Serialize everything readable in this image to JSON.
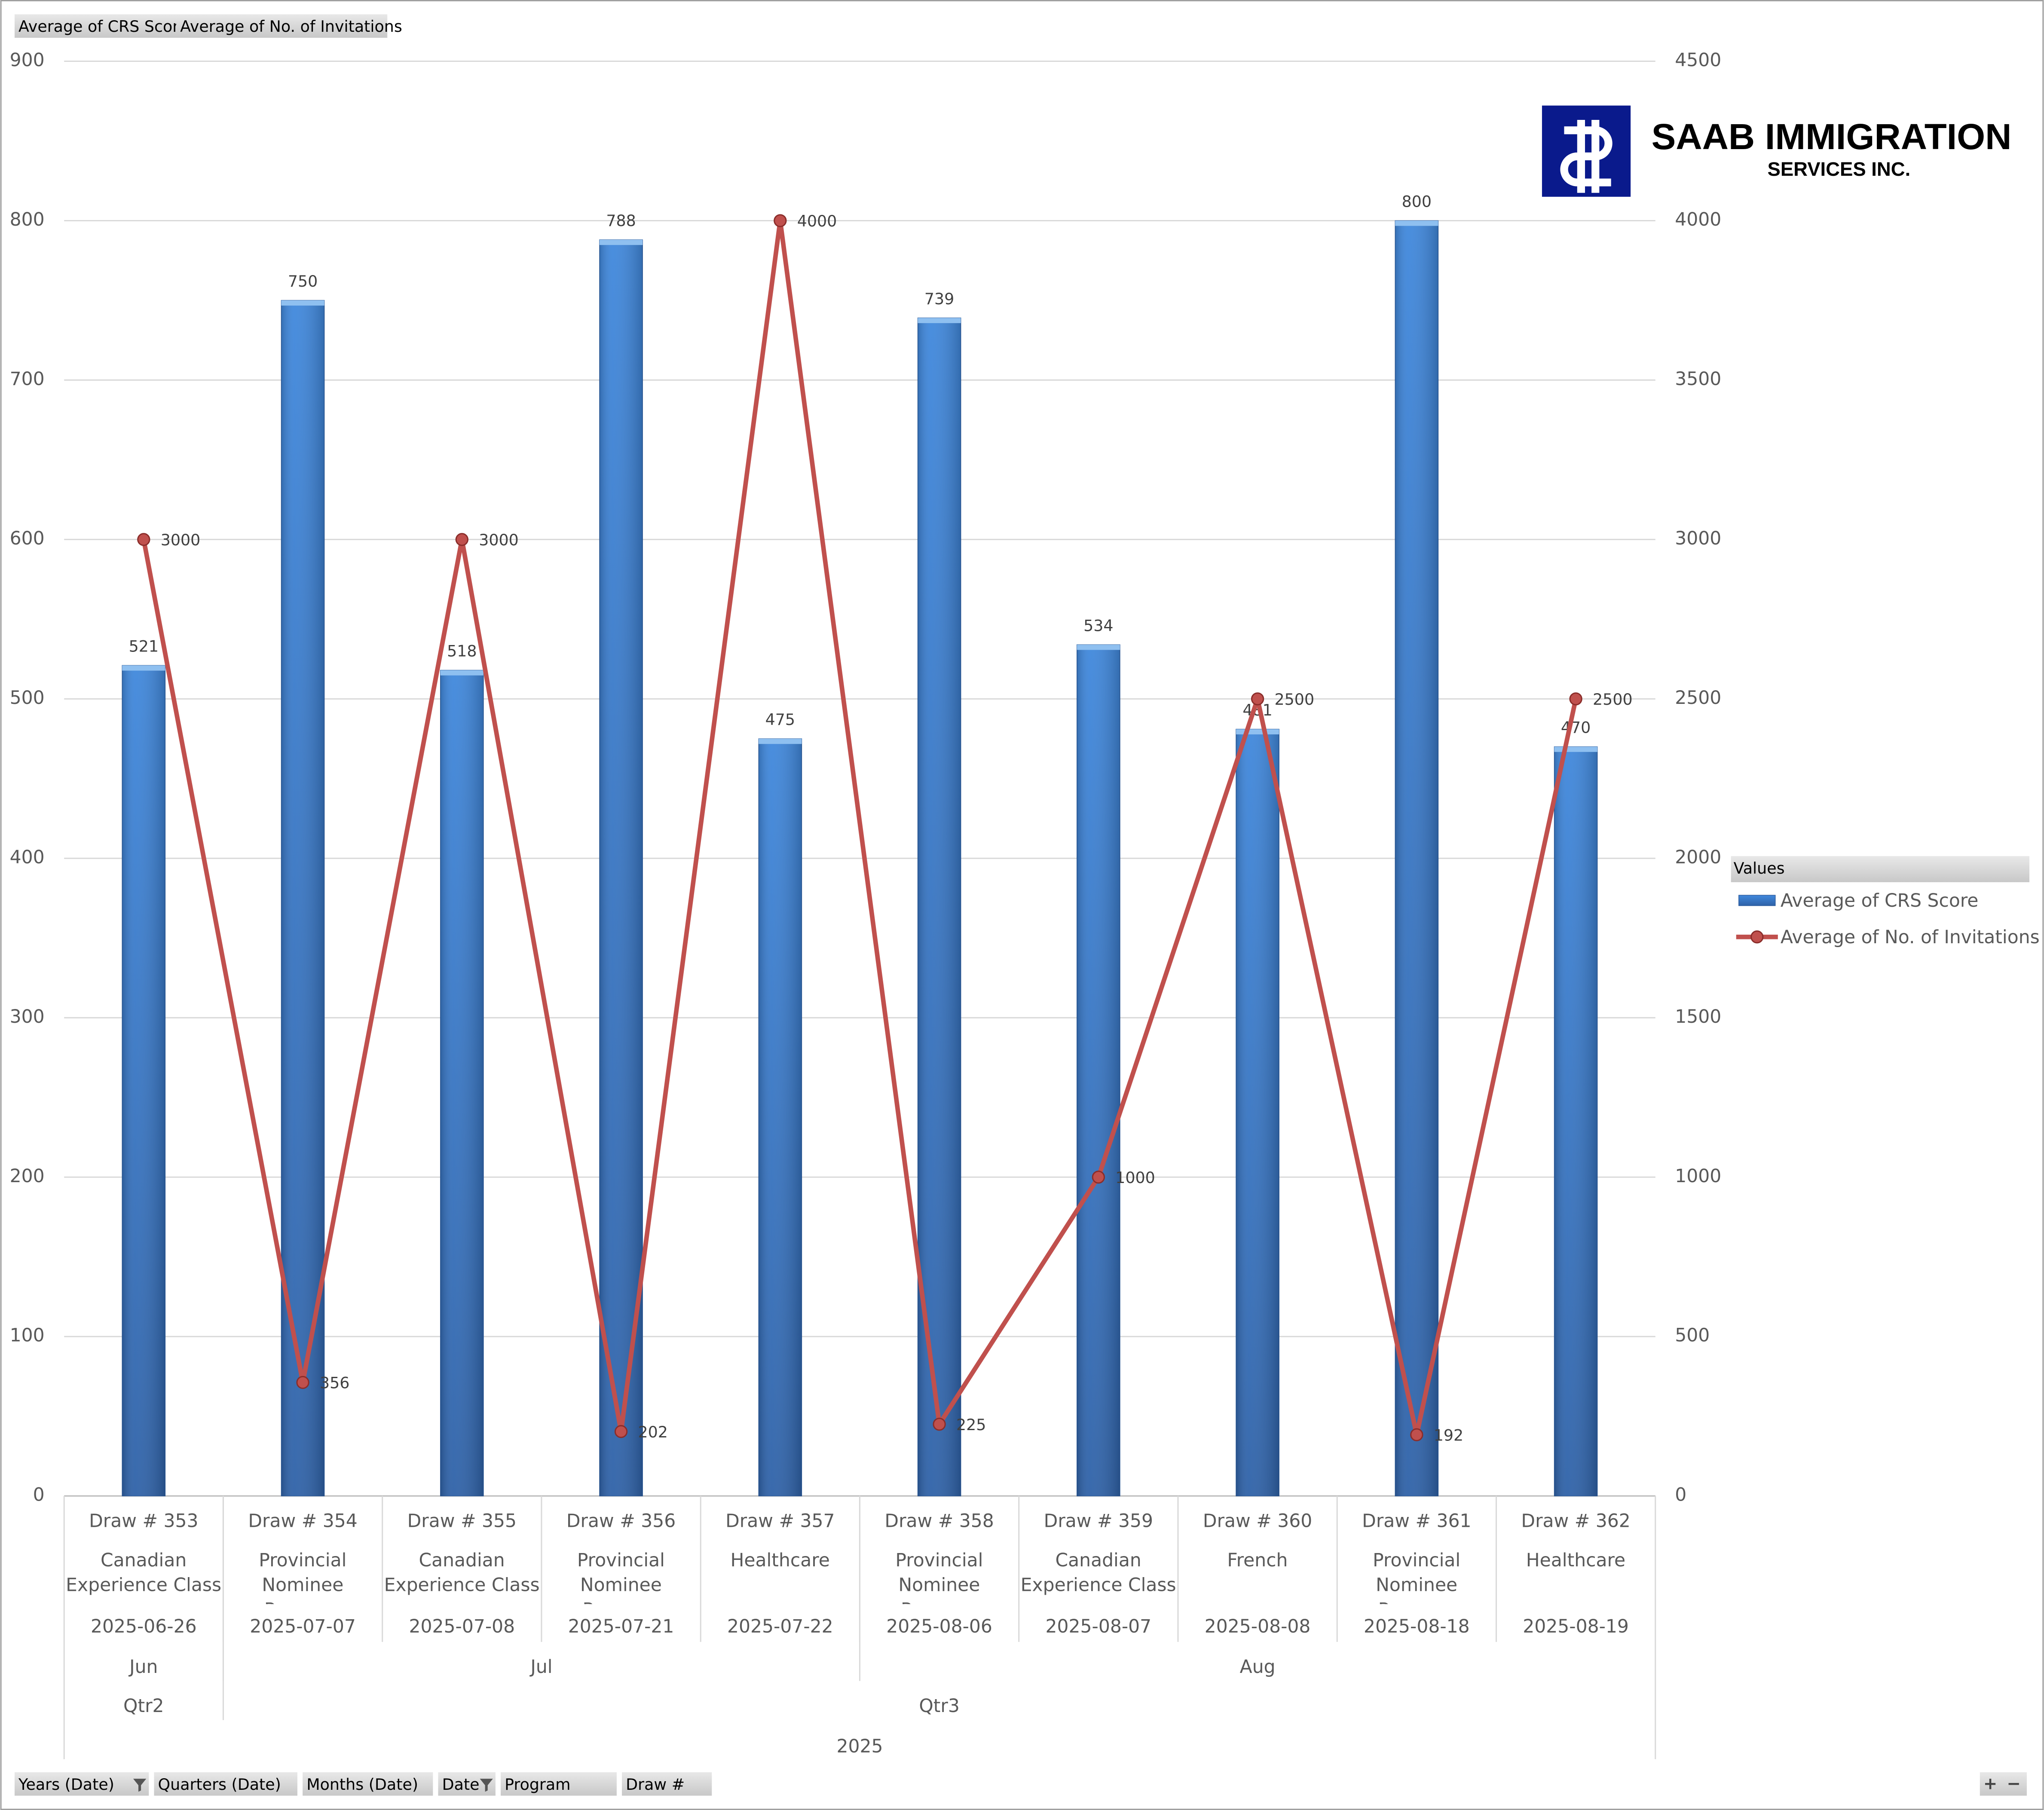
{
  "chart_data": {
    "type": "combo",
    "categories": [
      "Draw # 353",
      "Draw # 354",
      "Draw # 355",
      "Draw # 356",
      "Draw # 357",
      "Draw # 358",
      "Draw # 359",
      "Draw # 360",
      "Draw # 361",
      "Draw # 362"
    ],
    "programs": [
      "Canadian Experience Class",
      "Provincial Nominee Program",
      "Canadian Experience Class",
      "Provincial Nominee Program",
      "Healthcare",
      "Provincial Nominee Program",
      "Canadian Experience Class",
      "French",
      "Provincial Nominee Program",
      "Healthcare"
    ],
    "dates": [
      "2025-06-26",
      "2025-07-07",
      "2025-07-08",
      "2025-07-21",
      "2025-07-22",
      "2025-08-06",
      "2025-08-07",
      "2025-08-08",
      "2025-08-18",
      "2025-08-19"
    ],
    "months": [
      {
        "label": "Jun",
        "count": 1
      },
      {
        "label": "Jul",
        "count": 4
      },
      {
        "label": "Aug",
        "count": 5
      }
    ],
    "quarters": [
      {
        "label": "Qtr2",
        "count": 1
      },
      {
        "label": "Qtr3",
        "count": 9
      }
    ],
    "years": [
      {
        "label": "2025",
        "count": 10
      }
    ],
    "series": [
      {
        "name": "Average of CRS Score",
        "type": "bar",
        "color": "#3c80d6",
        "values": [
          521,
          750,
          518,
          788,
          475,
          739,
          534,
          481,
          800,
          470
        ]
      },
      {
        "name": "Average of No. of Invitations",
        "type": "line",
        "axis": "y2",
        "color": "#c0504d",
        "values": [
          3000,
          356,
          3000,
          202,
          4000,
          225,
          1000,
          2500,
          192,
          2500
        ]
      }
    ],
    "ylim": [
      0,
      900
    ],
    "yticks": [
      0,
      100,
      200,
      300,
      400,
      500,
      600,
      700,
      800,
      900
    ],
    "y2lim": [
      0,
      4500
    ],
    "y2ticks": [
      0,
      500,
      1000,
      1500,
      2000,
      2500,
      3000,
      3500,
      4000,
      4500
    ],
    "grid": true,
    "legend_title": "Values",
    "legend": "right"
  },
  "field_buttons": {
    "values": [
      "Average of CRS Score",
      "Average of No. of Invitations"
    ],
    "axis": [
      "Years (Date)",
      "Quarters (Date)",
      "Months (Date)",
      "Date",
      "Program",
      "Draw #"
    ]
  },
  "logo": {
    "line1": "SAAB IMMIGRATION",
    "line2": "SERVICES INC."
  }
}
